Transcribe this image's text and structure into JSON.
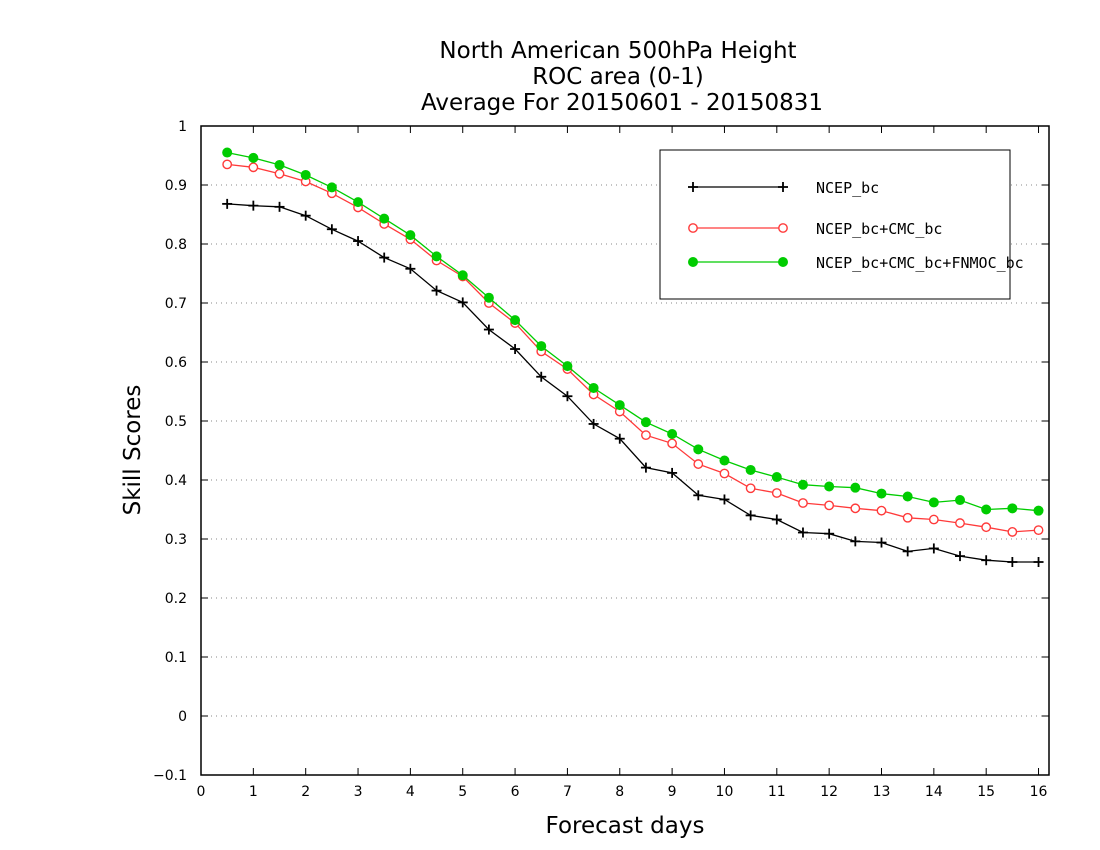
{
  "chart_data": {
    "type": "line",
    "title": [
      "North American 500hPa Height",
      "ROC area (0-1)",
      "Average For 20150601 - 20150831"
    ],
    "xlabel": "Forecast days",
    "ylabel": "Skill Scores",
    "xlim": [
      0,
      16.2
    ],
    "ylim": [
      -0.1,
      1
    ],
    "xticks": [
      0,
      1,
      2,
      3,
      4,
      5,
      6,
      7,
      8,
      9,
      10,
      11,
      12,
      13,
      14,
      15,
      16
    ],
    "yticks": [
      -0.1,
      0,
      0.1,
      0.2,
      0.3,
      0.4,
      0.5,
      0.6,
      0.7,
      0.8,
      0.9,
      1
    ],
    "ytick_labels": [
      "−0.1",
      "0",
      "0.1",
      "0.2",
      "0.3",
      "0.4",
      "0.5",
      "0.6",
      "0.7",
      "0.8",
      "0.9",
      "1"
    ],
    "grid": "horizontal dotted",
    "legend_position": "top-right",
    "x": [
      0.5,
      1,
      1.5,
      2,
      2.5,
      3,
      3.5,
      4,
      4.5,
      5,
      5.5,
      6,
      6.5,
      7,
      7.5,
      8,
      8.5,
      9,
      9.5,
      10,
      10.5,
      11,
      11.5,
      12,
      12.5,
      13,
      13.5,
      14,
      14.5,
      15,
      15.5,
      16
    ],
    "series": [
      {
        "name": "NCEP_bc",
        "color": "#000000",
        "marker": "plus",
        "values": [
          0.868,
          0.865,
          0.863,
          0.848,
          0.825,
          0.805,
          0.777,
          0.758,
          0.721,
          0.701,
          0.655,
          0.622,
          0.575,
          0.542,
          0.495,
          0.47,
          0.421,
          0.412,
          0.374,
          0.367,
          0.34,
          0.333,
          0.311,
          0.309,
          0.296,
          0.294,
          0.279,
          0.284,
          0.271,
          0.264,
          0.261,
          0.261
        ]
      },
      {
        "name": "NCEP_bc+CMC_bc",
        "color": "#ff3a3a",
        "marker": "open-circle",
        "values": [
          0.935,
          0.93,
          0.919,
          0.906,
          0.886,
          0.862,
          0.834,
          0.808,
          0.772,
          0.745,
          0.7,
          0.666,
          0.618,
          0.588,
          0.545,
          0.516,
          0.476,
          0.462,
          0.427,
          0.411,
          0.386,
          0.378,
          0.361,
          0.357,
          0.352,
          0.348,
          0.336,
          0.333,
          0.327,
          0.32,
          0.312,
          0.315
        ]
      },
      {
        "name": "NCEP_bc+CMC_bc+FNMOC_bc",
        "color": "#00cc00",
        "marker": "filled-circle",
        "values": [
          0.955,
          0.946,
          0.934,
          0.917,
          0.896,
          0.871,
          0.843,
          0.815,
          0.779,
          0.747,
          0.709,
          0.671,
          0.627,
          0.593,
          0.556,
          0.527,
          0.498,
          0.478,
          0.452,
          0.433,
          0.417,
          0.405,
          0.392,
          0.389,
          0.387,
          0.377,
          0.372,
          0.362,
          0.366,
          0.35,
          0.352,
          0.348
        ]
      }
    ]
  }
}
